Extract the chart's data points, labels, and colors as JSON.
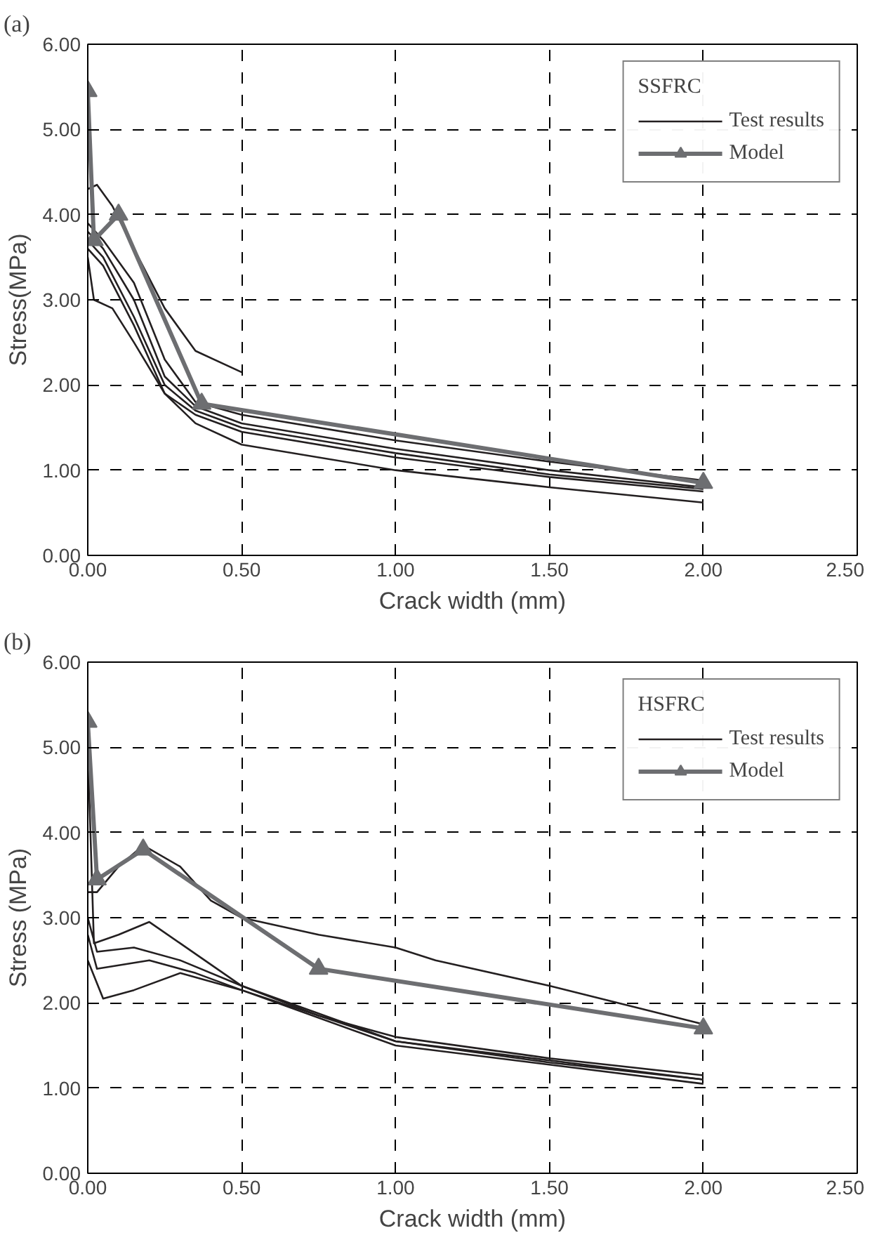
{
  "chart_data": [
    {
      "type": "line",
      "title": "(a)",
      "xlabel": "Crack width (mm)",
      "ylabel": "Stress(MPa)",
      "legend_title": "SSFRC",
      "legend": "top right",
      "grid": true,
      "line_style": "solid",
      "xlim": [
        0,
        2.5
      ],
      "ylim": [
        0,
        6
      ],
      "xticks": [
        {
          "value": 0,
          "label": "0.00"
        },
        {
          "value": 0.5,
          "label": "0.50"
        },
        {
          "value": 1,
          "label": "1.00"
        },
        {
          "value": 1.5,
          "label": "1.50"
        },
        {
          "value": 2,
          "label": "2.00"
        },
        {
          "value": 2.5,
          "label": "2.50"
        }
      ],
      "yticks": [
        {
          "value": 0,
          "label": "0.00"
        },
        {
          "value": 1,
          "label": "1.00"
        },
        {
          "value": 2,
          "label": "2.00"
        },
        {
          "value": 3,
          "label": "3.00"
        },
        {
          "value": 4,
          "label": "4.00"
        },
        {
          "value": 5,
          "label": "5.00"
        },
        {
          "value": 6,
          "label": "6.00"
        }
      ],
      "series": [
        {
          "name": "Test results",
          "color": "#231f20",
          "marker": "none",
          "x": [
            0,
            0.03,
            0.08,
            0.15,
            0.25,
            0.35,
            0.5
          ],
          "values": [
            4.3,
            4.35,
            4.1,
            3.6,
            2.9,
            2.4,
            2.15
          ]
        },
        {
          "color": "#231f20",
          "marker": "none",
          "x": [
            0,
            0.02,
            0.08,
            0.15,
            0.25,
            0.35,
            0.5,
            1.0,
            1.5,
            2.0
          ],
          "values": [
            3.5,
            3.0,
            2.9,
            2.5,
            1.9,
            1.55,
            1.3,
            1.0,
            0.8,
            0.62
          ]
        },
        {
          "color": "#231f20",
          "marker": "none",
          "x": [
            0,
            0.05,
            0.15,
            0.25,
            0.35,
            0.5,
            1.0,
            1.5,
            2.0
          ],
          "values": [
            3.9,
            3.7,
            3.2,
            2.3,
            1.8,
            1.65,
            1.35,
            1.1,
            0.88
          ]
        },
        {
          "color": "#231f20",
          "marker": "none",
          "x": [
            0,
            0.05,
            0.15,
            0.25,
            0.35,
            0.5,
            1.0,
            1.5,
            2.0
          ],
          "values": [
            3.8,
            3.6,
            3.0,
            2.1,
            1.75,
            1.55,
            1.25,
            1.0,
            0.8
          ]
        },
        {
          "color": "#231f20",
          "marker": "none",
          "x": [
            0,
            0.05,
            0.15,
            0.25,
            0.35,
            0.5,
            1.0,
            1.5,
            2.0
          ],
          "values": [
            3.7,
            3.5,
            2.8,
            2.0,
            1.7,
            1.5,
            1.2,
            0.95,
            0.78
          ]
        },
        {
          "color": "#231f20",
          "marker": "none",
          "x": [
            0,
            0.05,
            0.15,
            0.25,
            0.35,
            0.5,
            1.0,
            1.5,
            2.0
          ],
          "values": [
            3.6,
            3.4,
            2.7,
            1.9,
            1.65,
            1.45,
            1.15,
            0.92,
            0.75
          ]
        },
        {
          "name": "Model",
          "color": "#6d6e71",
          "marker": "triangle",
          "x": [
            0,
            0.02,
            0.1,
            0.37,
            2.0
          ],
          "values": [
            5.45,
            3.7,
            4.0,
            1.78,
            0.85
          ]
        }
      ]
    },
    {
      "type": "line",
      "title": "(b)",
      "xlabel": "Crack width (mm)",
      "ylabel": "Stress (MPa)",
      "legend_title": "HSFRC",
      "legend": "top right",
      "grid": true,
      "line_style": "solid",
      "xlim": [
        0,
        2.5
      ],
      "ylim": [
        0,
        6
      ],
      "xticks": [
        {
          "value": 0,
          "label": "0.00"
        },
        {
          "value": 0.5,
          "label": "0.50"
        },
        {
          "value": 1,
          "label": "1.00"
        },
        {
          "value": 1.5,
          "label": "1.50"
        },
        {
          "value": 2,
          "label": "2.00"
        },
        {
          "value": 2.5,
          "label": "2.50"
        }
      ],
      "yticks": [
        {
          "value": 0,
          "label": "0.00"
        },
        {
          "value": 1,
          "label": "1.00"
        },
        {
          "value": 2,
          "label": "2.00"
        },
        {
          "value": 3,
          "label": "3.00"
        },
        {
          "value": 4,
          "label": "4.00"
        },
        {
          "value": 5,
          "label": "5.00"
        },
        {
          "value": 6,
          "label": "6.00"
        }
      ],
      "series": [
        {
          "name": "Test results",
          "color": "#231f20",
          "marker": "none",
          "x": [
            0,
            0.03,
            0.1,
            0.18,
            0.3,
            0.4,
            0.5,
            0.75,
            1.0,
            1.13,
            1.5,
            2.0
          ],
          "values": [
            3.3,
            3.3,
            3.6,
            3.85,
            3.6,
            3.2,
            3.0,
            2.8,
            2.65,
            2.5,
            2.2,
            1.75
          ]
        },
        {
          "color": "#231f20",
          "marker": "none",
          "x": [
            0,
            0.02,
            0.1,
            0.2,
            0.3,
            0.5,
            0.75,
            1.0,
            1.5,
            2.0
          ],
          "values": [
            5.0,
            2.7,
            2.8,
            2.95,
            2.7,
            2.2,
            1.85,
            1.6,
            1.35,
            1.15
          ]
        },
        {
          "color": "#231f20",
          "marker": "none",
          "x": [
            0,
            0.03,
            0.15,
            0.3,
            0.5,
            1.0,
            1.5,
            2.0
          ],
          "values": [
            3.0,
            2.6,
            2.65,
            2.5,
            2.2,
            1.55,
            1.3,
            1.1
          ]
        },
        {
          "color": "#231f20",
          "marker": "none",
          "x": [
            0,
            0.03,
            0.2,
            0.35,
            0.5,
            1.0,
            2.0
          ],
          "values": [
            2.8,
            2.4,
            2.5,
            2.35,
            2.15,
            1.5,
            1.05
          ]
        },
        {
          "color": "#231f20",
          "marker": "none",
          "x": [
            0,
            0.05,
            0.15,
            0.3,
            0.5,
            1.0,
            2.0
          ],
          "values": [
            2.5,
            2.05,
            2.15,
            2.35,
            2.15,
            1.55,
            1.1
          ]
        },
        {
          "name": "Model",
          "color": "#6d6e71",
          "marker": "triangle",
          "x": [
            0,
            0.03,
            0.18,
            0.75,
            2.0
          ],
          "values": [
            5.3,
            3.45,
            3.8,
            2.4,
            1.7
          ]
        }
      ]
    }
  ]
}
